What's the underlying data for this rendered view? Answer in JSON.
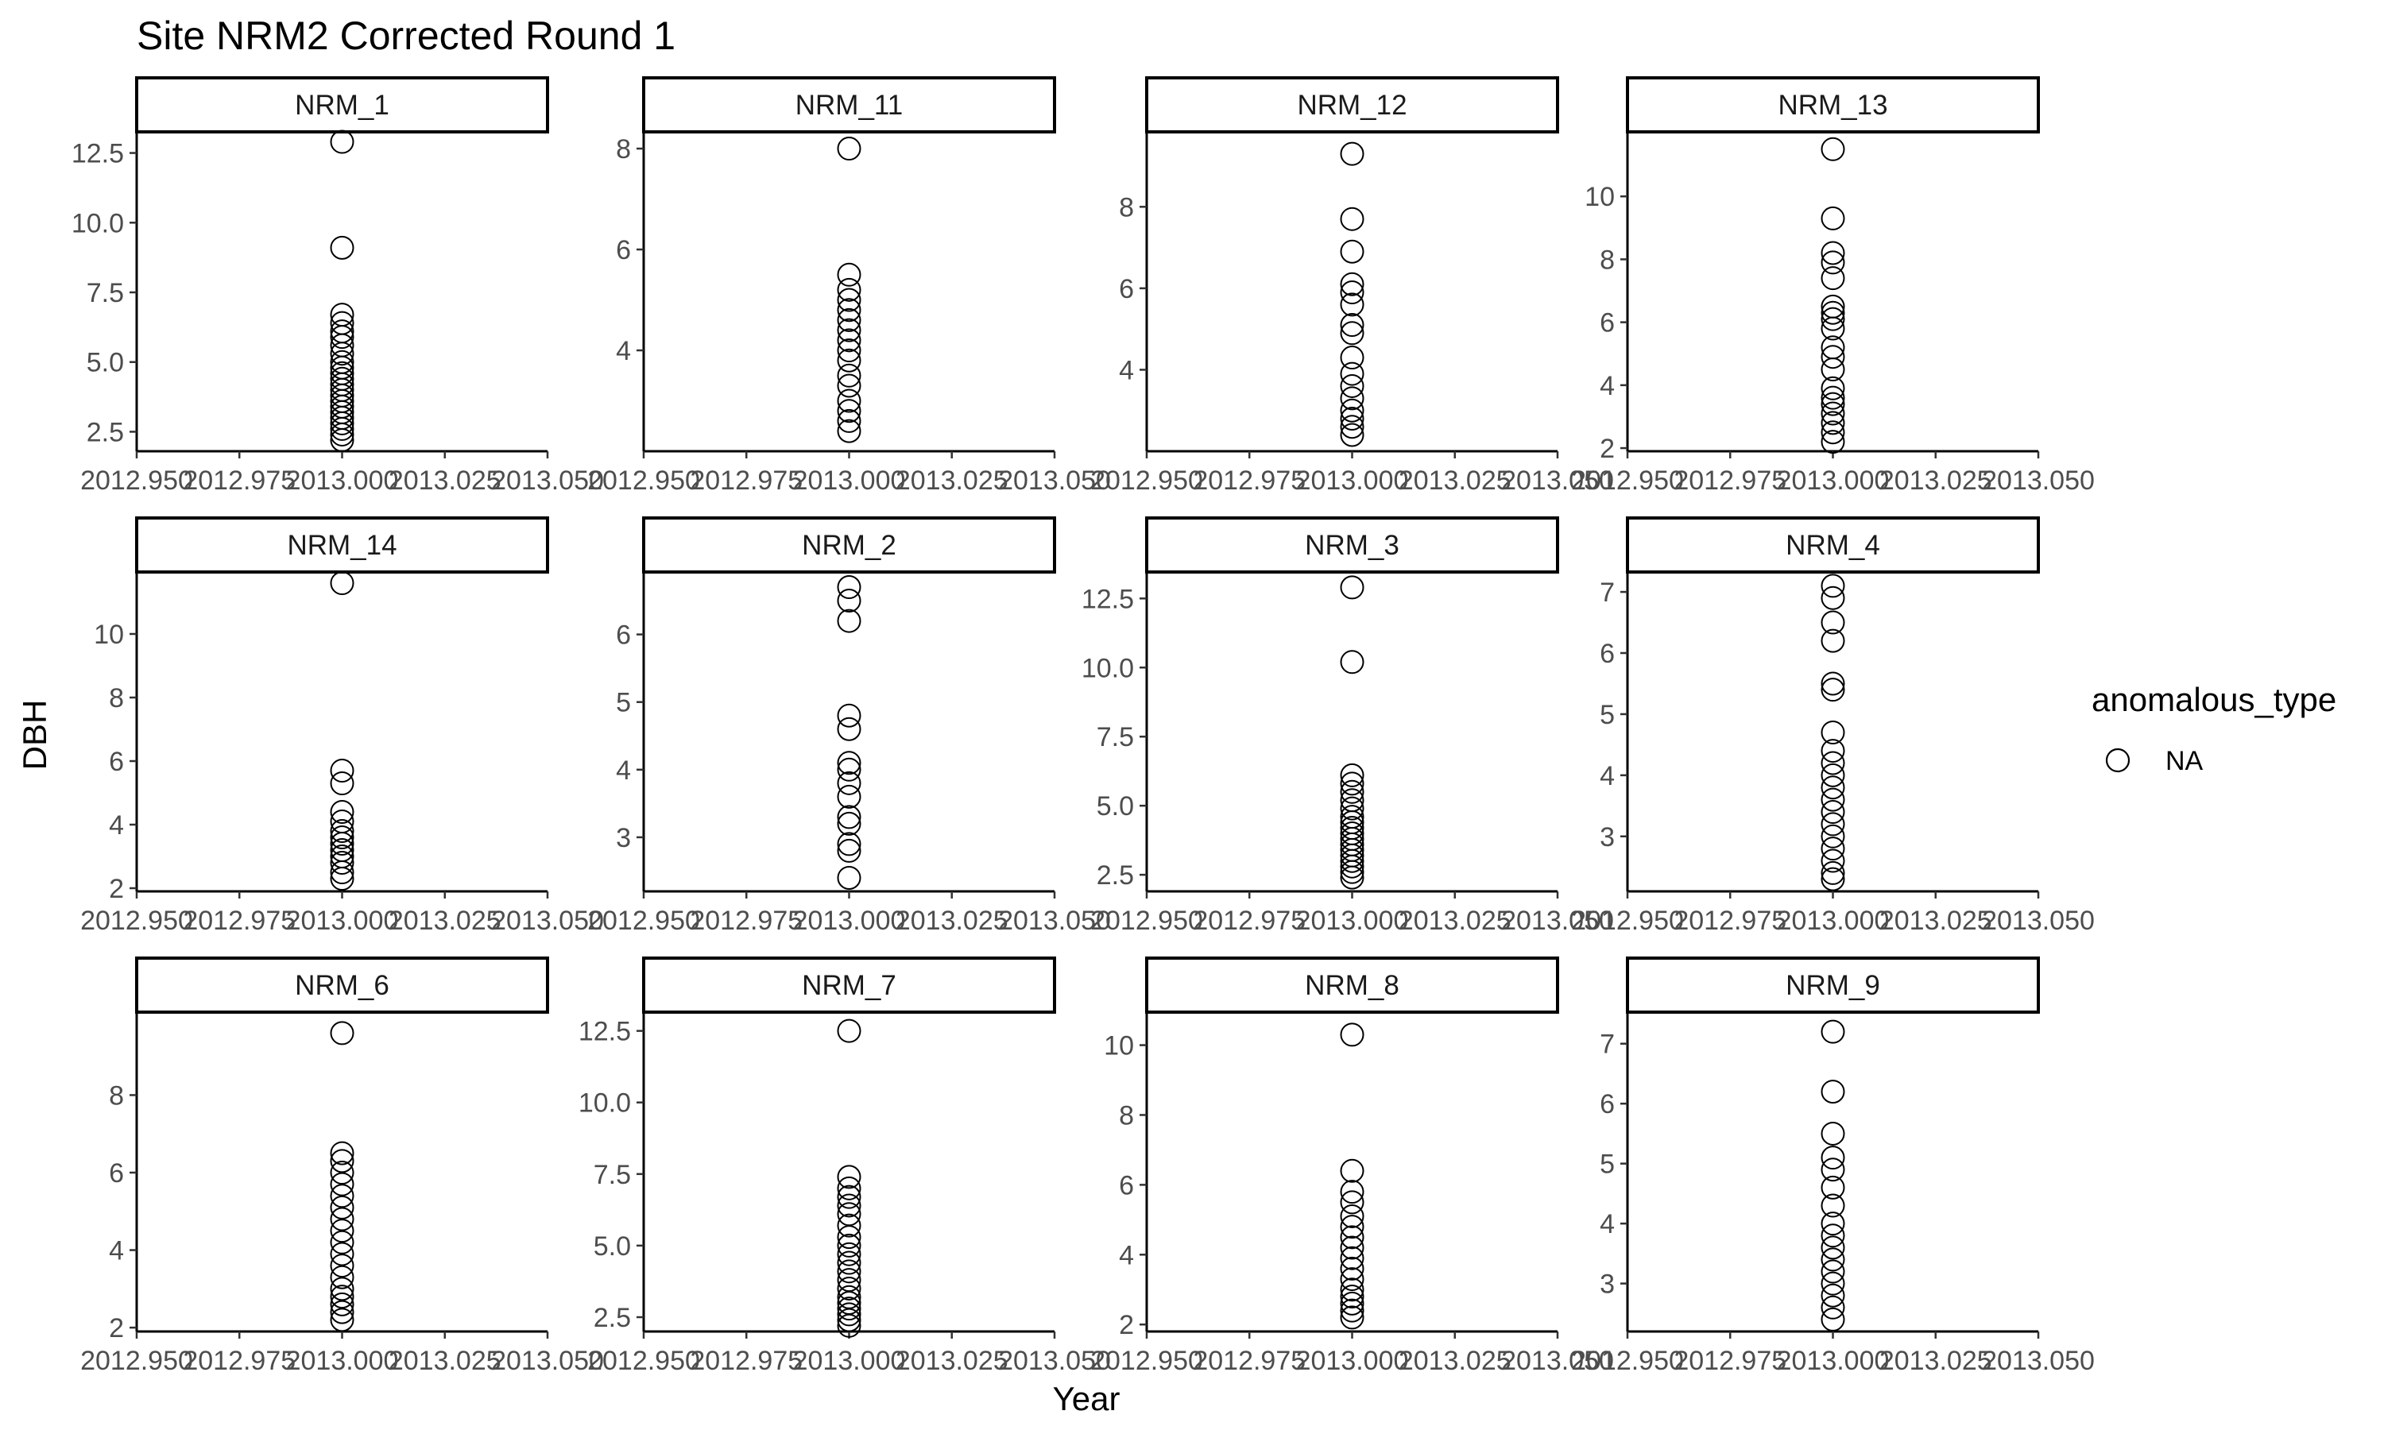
{
  "chart_data": {
    "type": "scatter",
    "title": "Site NRM2 Corrected Round 1",
    "xlabel": "Year",
    "ylabel": "DBH",
    "xlim": [
      2012.95,
      2013.05
    ],
    "x_ticks": [
      "2012.950",
      "2012.975",
      "2013.000",
      "2013.025",
      "2013.050"
    ],
    "legend": {
      "title": "anomalous_type",
      "entries": [
        "NA"
      ],
      "position": "right"
    },
    "marker": "open-circle",
    "facets": [
      {
        "name": "NRM_1",
        "ylim": [
          1.8,
          13.2
        ],
        "y_ticks": [
          "2.5",
          "5.0",
          "7.5",
          "10.0",
          "12.5"
        ],
        "x": 2013.0,
        "values": [
          12.9,
          9.1,
          6.7,
          6.4,
          6.1,
          5.9,
          5.6,
          5.3,
          5.0,
          4.8,
          4.6,
          4.4,
          4.2,
          4.0,
          3.8,
          3.6,
          3.4,
          3.2,
          3.0,
          2.8,
          2.6,
          2.4,
          2.2
        ]
      },
      {
        "name": "NRM_11",
        "ylim": [
          2.0,
          8.3
        ],
        "y_ticks": [
          "4",
          "6",
          "8"
        ],
        "x": 2013.0,
        "values": [
          8.0,
          5.5,
          5.2,
          5.0,
          4.8,
          4.6,
          4.4,
          4.2,
          4.0,
          3.8,
          3.5,
          3.3,
          3.0,
          2.8,
          2.6,
          2.4
        ]
      },
      {
        "name": "NRM_12",
        "ylim": [
          2.0,
          9.8
        ],
        "y_ticks": [
          "4",
          "6",
          "8"
        ],
        "x": 2013.0,
        "values": [
          9.3,
          7.7,
          6.9,
          6.1,
          5.9,
          5.6,
          5.1,
          4.9,
          4.3,
          3.9,
          3.6,
          3.3,
          3.0,
          2.8,
          2.6,
          2.4
        ]
      },
      {
        "name": "NRM_13",
        "ylim": [
          1.9,
          12.0
        ],
        "y_ticks": [
          "2",
          "4",
          "6",
          "8",
          "10"
        ],
        "x": 2013.0,
        "values": [
          11.5,
          9.3,
          8.2,
          7.9,
          7.4,
          6.5,
          6.3,
          6.1,
          5.8,
          5.2,
          4.9,
          4.5,
          3.9,
          3.6,
          3.4,
          3.1,
          2.8,
          2.5,
          2.2
        ]
      },
      {
        "name": "NRM_14",
        "ylim": [
          1.9,
          11.9
        ],
        "y_ticks": [
          "2",
          "4",
          "6",
          "8",
          "10"
        ],
        "x": 2013.0,
        "values": [
          11.6,
          5.7,
          5.3,
          4.4,
          4.1,
          3.8,
          3.6,
          3.4,
          3.2,
          3.0,
          2.8,
          2.5,
          2.3
        ]
      },
      {
        "name": "NRM_2",
        "ylim": [
          2.2,
          6.9
        ],
        "y_ticks": [
          "3",
          "4",
          "5",
          "6"
        ],
        "x": 2013.0,
        "values": [
          6.7,
          6.5,
          6.2,
          4.8,
          4.6,
          4.1,
          4.0,
          3.8,
          3.6,
          3.3,
          3.2,
          2.9,
          2.8,
          2.4
        ]
      },
      {
        "name": "NRM_3",
        "ylim": [
          1.9,
          13.4
        ],
        "y_ticks": [
          "2.5",
          "5.0",
          "7.5",
          "10.0",
          "12.5"
        ],
        "x": 2013.0,
        "values": [
          12.9,
          10.2,
          6.1,
          5.8,
          5.5,
          5.2,
          4.9,
          4.6,
          4.4,
          4.2,
          4.0,
          3.8,
          3.6,
          3.4,
          3.2,
          3.0,
          2.8,
          2.6,
          2.4
        ]
      },
      {
        "name": "NRM_4",
        "ylim": [
          2.1,
          7.3
        ],
        "y_ticks": [
          "3",
          "4",
          "5",
          "6",
          "7"
        ],
        "x": 2013.0,
        "values": [
          7.1,
          6.9,
          6.5,
          6.2,
          5.5,
          5.4,
          4.7,
          4.4,
          4.2,
          4.0,
          3.8,
          3.6,
          3.4,
          3.2,
          3.0,
          2.8,
          2.6,
          2.4,
          2.3
        ]
      },
      {
        "name": "NRM_6",
        "ylim": [
          1.9,
          10.1
        ],
        "y_ticks": [
          "2",
          "4",
          "6",
          "8"
        ],
        "x": 2013.0,
        "values": [
          9.6,
          6.5,
          6.3,
          6.0,
          5.7,
          5.4,
          5.1,
          4.8,
          4.5,
          4.2,
          3.9,
          3.6,
          3.3,
          3.0,
          2.8,
          2.6,
          2.4,
          2.2
        ]
      },
      {
        "name": "NRM_7",
        "ylim": [
          2.0,
          13.1
        ],
        "y_ticks": [
          "2.5",
          "5.0",
          "7.5",
          "10.0",
          "12.5"
        ],
        "x": 2013.0,
        "values": [
          12.5,
          7.4,
          7.0,
          6.7,
          6.4,
          6.1,
          5.7,
          5.3,
          5.0,
          4.7,
          4.4,
          4.1,
          3.8,
          3.5,
          3.2,
          3.0,
          2.8,
          2.6,
          2.4,
          2.2
        ]
      },
      {
        "name": "NRM_8",
        "ylim": [
          1.8,
          10.9
        ],
        "y_ticks": [
          "2",
          "4",
          "6",
          "8",
          "10"
        ],
        "x": 2013.0,
        "values": [
          10.3,
          6.4,
          5.8,
          5.5,
          5.1,
          4.8,
          4.5,
          4.2,
          3.9,
          3.6,
          3.3,
          3.0,
          2.8,
          2.6,
          2.4,
          2.2
        ]
      },
      {
        "name": "NRM_9",
        "ylim": [
          2.2,
          7.5
        ],
        "y_ticks": [
          "3",
          "4",
          "5",
          "6",
          "7"
        ],
        "x": 2013.0,
        "values": [
          7.2,
          6.2,
          5.5,
          5.1,
          4.9,
          4.6,
          4.3,
          4.0,
          3.8,
          3.6,
          3.4,
          3.2,
          3.0,
          2.8,
          2.6,
          2.4
        ]
      }
    ]
  }
}
